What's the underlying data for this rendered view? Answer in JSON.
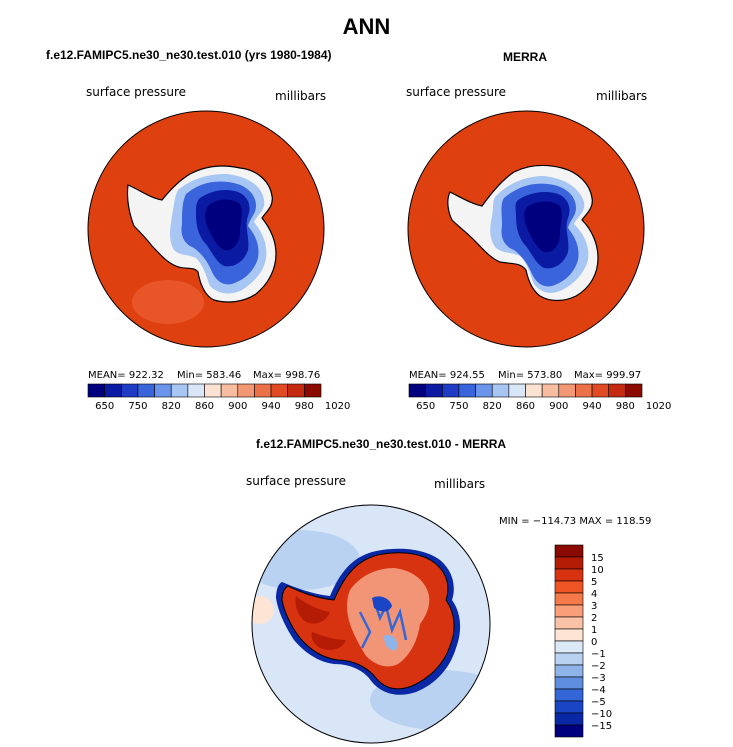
{
  "figure": {
    "title": "ANN"
  },
  "panels": [
    {
      "title": "f.e12.FAMIPC5.ne30_ne30.test.010 (yrs 1980-1984)",
      "variable": "surface pressure",
      "units": "millibars",
      "stats": {
        "mean": "MEAN= 922.32",
        "min": "Min= 583.46",
        "max": "Max= 998.76"
      },
      "colorbar": {
        "colors": [
          "#00007f",
          "#0a1aa3",
          "#1f3cc4",
          "#3a64dc",
          "#6a95ea",
          "#a7c6f4",
          "#d9e6f7",
          "#fbe2d2",
          "#f7bda0",
          "#f29874",
          "#eb7149",
          "#e24a24",
          "#c42a10",
          "#8a0a00"
        ],
        "tick_labels": [
          "650",
          "750",
          "820",
          "860",
          "900",
          "940",
          "980",
          "1020"
        ]
      }
    },
    {
      "title": "MERRA",
      "variable": "surface pressure",
      "units": "millibars",
      "stats": {
        "mean": "MEAN= 924.55",
        "min": "Min= 573.80",
        "max": "Max= 999.97"
      },
      "colorbar": {
        "colors": [
          "#00007f",
          "#0a1aa3",
          "#1f3cc4",
          "#3a64dc",
          "#6a95ea",
          "#a7c6f4",
          "#d9e6f7",
          "#fbe2d2",
          "#f7bda0",
          "#f29874",
          "#eb7149",
          "#e24a24",
          "#c42a10",
          "#8a0a00"
        ],
        "tick_labels": [
          "650",
          "750",
          "820",
          "860",
          "900",
          "940",
          "980",
          "1020"
        ]
      }
    },
    {
      "title": "f.e12.FAMIPC5.ne30_ne30.test.010 - MERRA",
      "variable": "surface pressure",
      "units": "millibars",
      "stats": {
        "minmax": "MIN = −114.73 MAX = 118.59"
      },
      "colorbar": {
        "colors": [
          "#8a0a00",
          "#b51c05",
          "#d83310",
          "#ee5424",
          "#f57a4a",
          "#f89f7a",
          "#fac3a8",
          "#fde4d4",
          "#dce9f7",
          "#b9d2f2",
          "#8fb4ea",
          "#5f8ee0",
          "#3366d6",
          "#1a45c4",
          "#0a28a6",
          "#00007f"
        ],
        "labels": [
          "15",
          "10",
          "5",
          "4",
          "3",
          "2",
          "1",
          "0",
          "−1",
          "−2",
          "−3",
          "−4",
          "−5",
          "−10",
          "−15"
        ]
      }
    }
  ]
}
